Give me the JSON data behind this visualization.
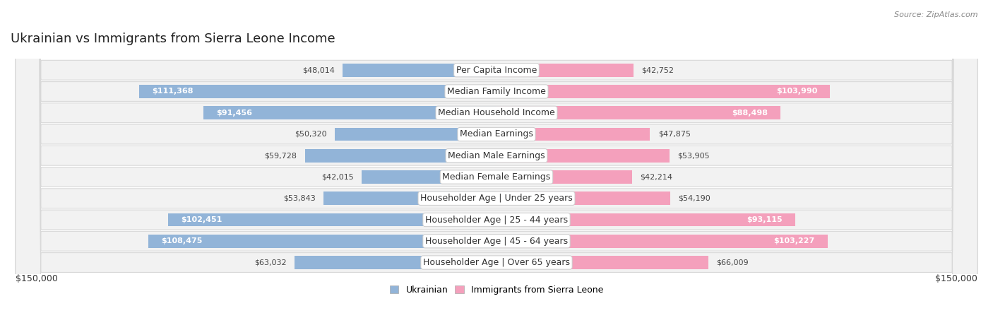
{
  "title": "Ukrainian vs Immigrants from Sierra Leone Income",
  "source": "Source: ZipAtlas.com",
  "categories": [
    "Per Capita Income",
    "Median Family Income",
    "Median Household Income",
    "Median Earnings",
    "Median Male Earnings",
    "Median Female Earnings",
    "Householder Age | Under 25 years",
    "Householder Age | 25 - 44 years",
    "Householder Age | 45 - 64 years",
    "Householder Age | Over 65 years"
  ],
  "ukrainian_values": [
    48014,
    111368,
    91456,
    50320,
    59728,
    42015,
    53843,
    102451,
    108475,
    63032
  ],
  "sierraleone_values": [
    42752,
    103990,
    88498,
    47875,
    53905,
    42214,
    54190,
    93115,
    103227,
    66009
  ],
  "ukrainian_color": "#92b4d8",
  "sierraleone_color": "#f4a0bc",
  "row_bg_color": "#f2f2f2",
  "row_border_color": "#d8d8d8",
  "max_value": 150000,
  "ukrainian_label": "Ukrainian",
  "sierraleone_label": "Immigrants from Sierra Leone",
  "title_fontsize": 13,
  "label_fontsize": 9,
  "value_fontsize": 8,
  "axis_fontsize": 9,
  "inside_threshold": 70000
}
